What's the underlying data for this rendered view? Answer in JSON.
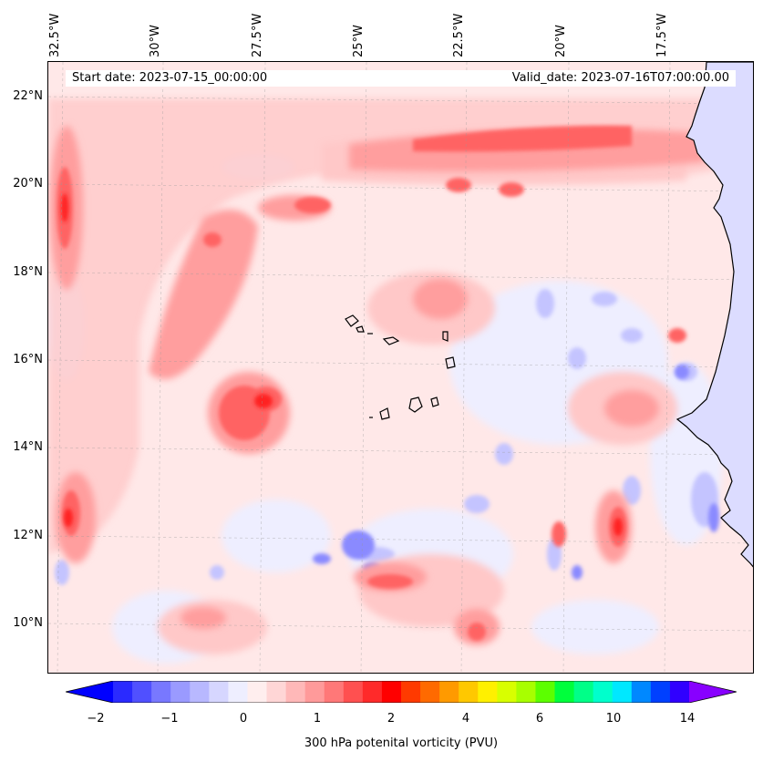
{
  "header": {
    "start_date": "Start date: 2023-07-15_00:00:00",
    "valid_date": "Valid_date: 2023-07-16T07:00:00.00"
  },
  "map": {
    "variable": "300 hPa potenital vorticity (PVU)",
    "lon_labels": [
      "32.5°W",
      "30°W",
      "27.5°W",
      "25°W",
      "22.5°W",
      "20°W",
      "17.5°W"
    ],
    "lat_labels": [
      "22°N",
      "20°N",
      "18°N",
      "16°N",
      "14°N",
      "12°N",
      "10°N"
    ],
    "gridlines": true,
    "features": [
      "Cape Verde islands",
      "West African coastline"
    ]
  },
  "colorbar": {
    "tick_labels": [
      "−2",
      "−1",
      "0",
      "1",
      "2",
      "4",
      "6",
      "10",
      "14"
    ],
    "colors": [
      "#0000ff",
      "#2a2aff",
      "#5050ff",
      "#7878ff",
      "#9a9aff",
      "#b8b8ff",
      "#d6d6ff",
      "#eeeeff",
      "#ffeeee",
      "#ffd6d6",
      "#ffb8b8",
      "#ff9a9a",
      "#ff7878",
      "#ff5050",
      "#ff2a2a",
      "#ff0000",
      "#ff3a00",
      "#ff6a00",
      "#ff9a00",
      "#ffc800",
      "#fff000",
      "#d8ff00",
      "#a8ff00",
      "#5cff00",
      "#00ff3c",
      "#00ff88",
      "#00ffcc",
      "#00e8ff",
      "#0088ff",
      "#0040ff",
      "#3000ff",
      "#8800ff"
    ],
    "extend": "both"
  }
}
